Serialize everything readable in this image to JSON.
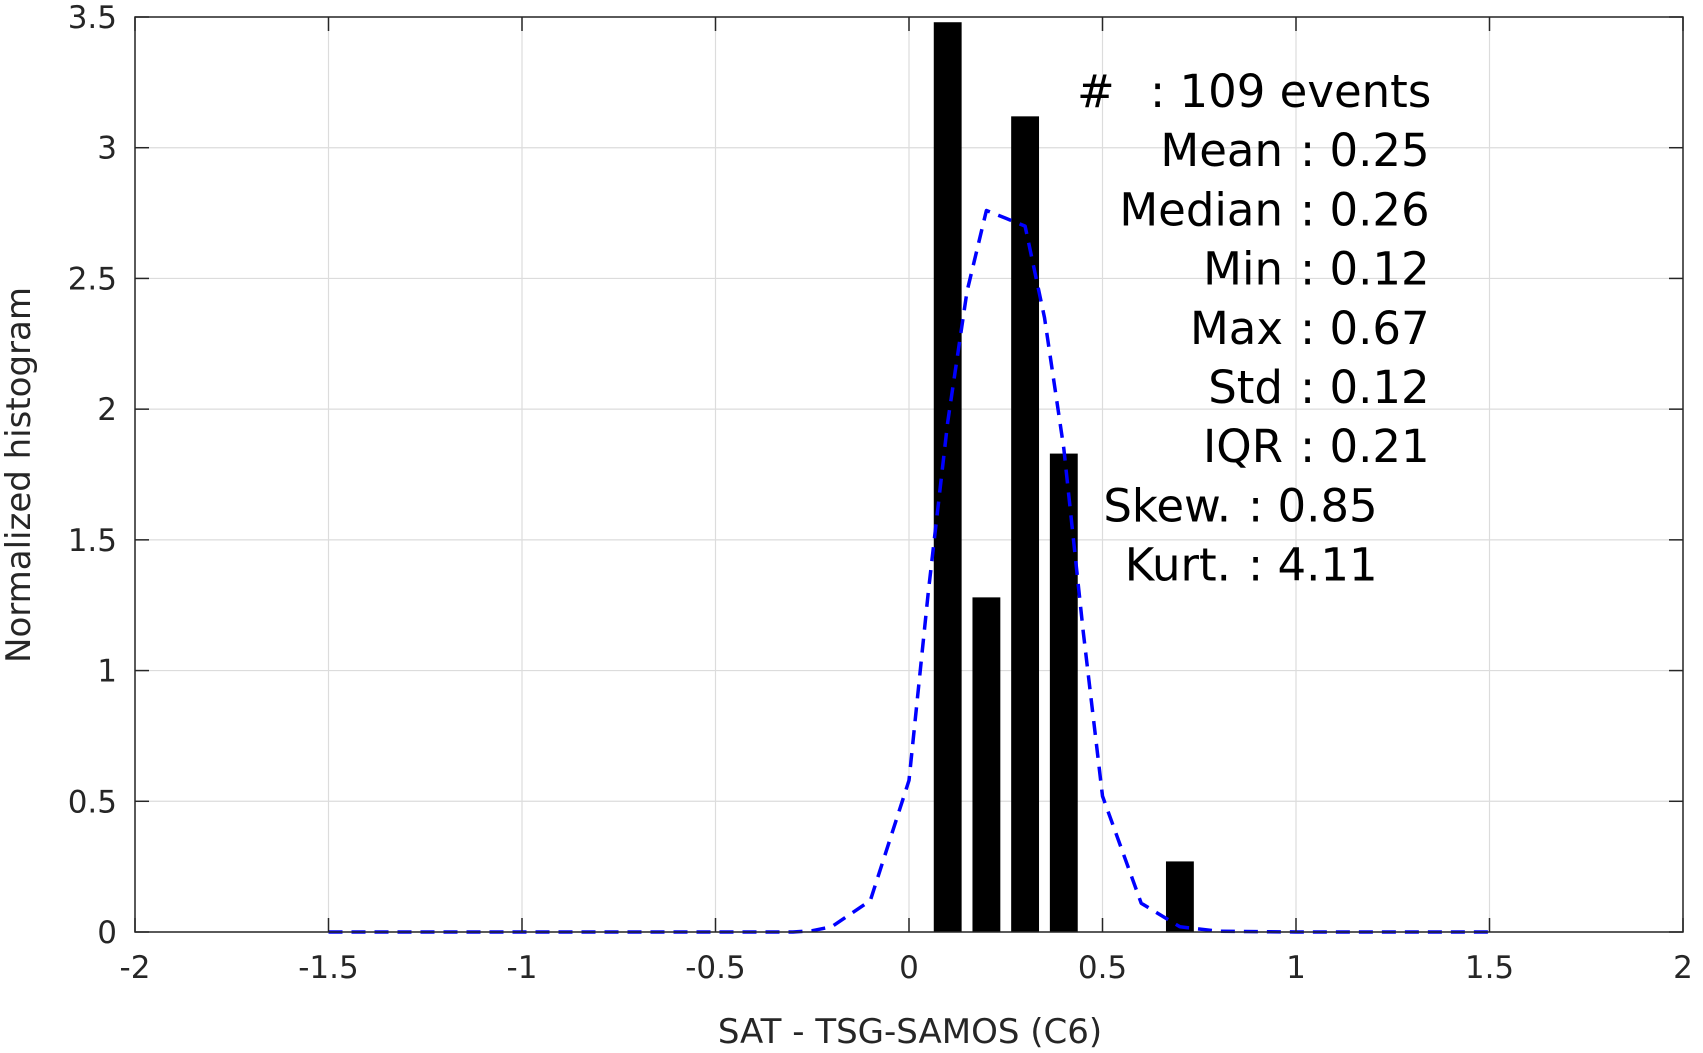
{
  "chart_data": {
    "type": "bar",
    "xlabel": "SAT - TSG-SAMOS (C6)",
    "ylabel": "Normalized histogram",
    "xlim": [
      -2,
      2
    ],
    "ylim": [
      0,
      3.5
    ],
    "grid": true,
    "xticks": [
      -2,
      -1.5,
      -1,
      -0.5,
      0,
      0.5,
      1,
      1.5,
      2
    ],
    "yticks": [
      0,
      0.5,
      1,
      1.5,
      2,
      2.5,
      3,
      3.5
    ],
    "xtick_labels": [
      "-2",
      "-1.5",
      "-1",
      "-0.5",
      "0",
      "0.5",
      "1",
      "1.5",
      "2"
    ],
    "ytick_labels": [
      "0",
      "0.5",
      "1",
      "1.5",
      "2",
      "2.5",
      "3",
      "3.5"
    ],
    "bars": {
      "color": "#000000",
      "x": [
        0.1,
        0.2,
        0.3,
        0.4,
        0.5,
        0.6,
        0.7
      ],
      "values": [
        3.48,
        1.28,
        3.12,
        1.83,
        0.0,
        0.0,
        0.27
      ]
    },
    "fit_line": {
      "style": "dashed",
      "color": "#0000ff",
      "x": [
        -1.5,
        -1.3,
        -1.1,
        -0.9,
        -0.7,
        -0.5,
        -0.3,
        -0.25,
        -0.2,
        -0.1,
        0.0,
        0.05,
        0.1,
        0.15,
        0.2,
        0.25,
        0.3,
        0.35,
        0.4,
        0.45,
        0.5,
        0.6,
        0.7,
        0.8,
        1.0,
        1.2,
        1.5
      ],
      "y": [
        0,
        0,
        0,
        0,
        0,
        0,
        0,
        0.005,
        0.02,
        0.12,
        0.58,
        1.3,
        1.95,
        2.45,
        2.76,
        2.73,
        2.7,
        2.35,
        1.85,
        1.15,
        0.52,
        0.11,
        0.02,
        0.003,
        0,
        0,
        0
      ]
    },
    "annotations": [
      {
        "label": "#",
        "sep": ": 109 events"
      },
      {
        "label": "Mean",
        "sep": ": 0.25"
      },
      {
        "label": "Median",
        "sep": ": 0.26"
      },
      {
        "label": "Min",
        "sep": ": 0.12"
      },
      {
        "label": "Max",
        "sep": ": 0.67"
      },
      {
        "label": "Std",
        "sep": ": 0.12"
      },
      {
        "label": "IQR",
        "sep": ": 0.21"
      },
      {
        "label": "Skew.",
        "sep": ": 0.85"
      },
      {
        "label": "Kurt.",
        "sep": ": 4.11"
      }
    ]
  }
}
